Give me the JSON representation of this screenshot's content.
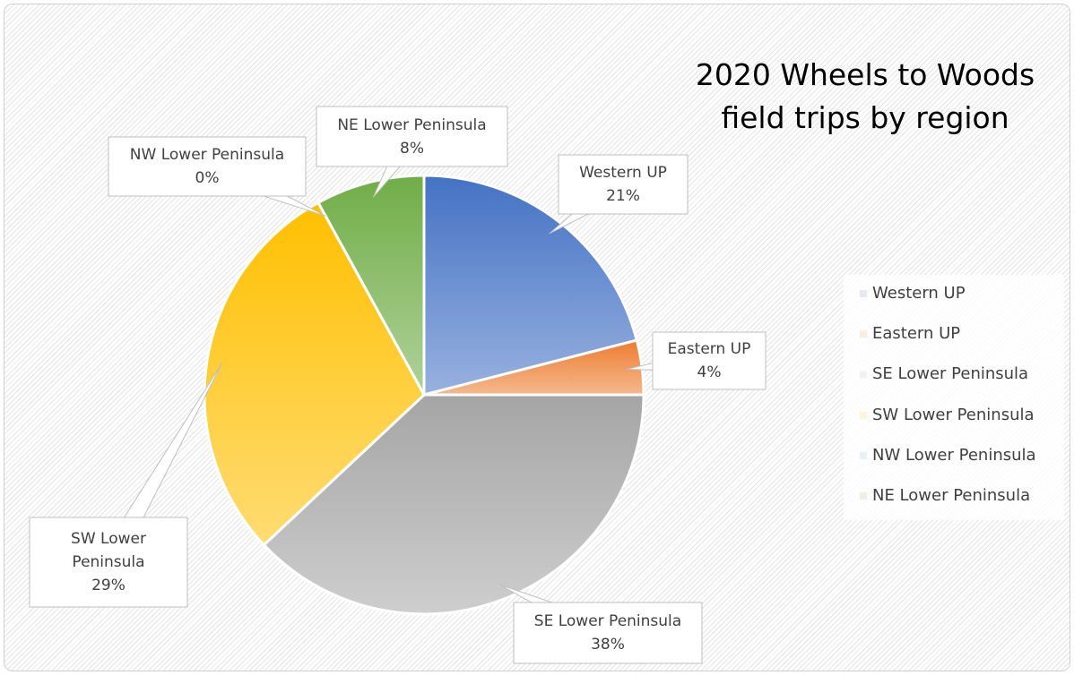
{
  "chart_data": {
    "type": "pie",
    "title": "2020 Wheels to Woods field trips by region",
    "categories": [
      "Western UP",
      "Eastern UP",
      "SE Lower Peninsula",
      "SW Lower Peninsula",
      "NW Lower Peninsula",
      "NE Lower Peninsula"
    ],
    "values": [
      21,
      4,
      38,
      29,
      0,
      8
    ],
    "value_labels": [
      "21%",
      "4%",
      "38%",
      "29%",
      "0%",
      "8%"
    ],
    "colors": [
      "#4472c4",
      "#ed7d31",
      "#a5a5a5",
      "#ffc000",
      "#5b9bd5",
      "#70ad47"
    ],
    "legend": "right"
  }
}
